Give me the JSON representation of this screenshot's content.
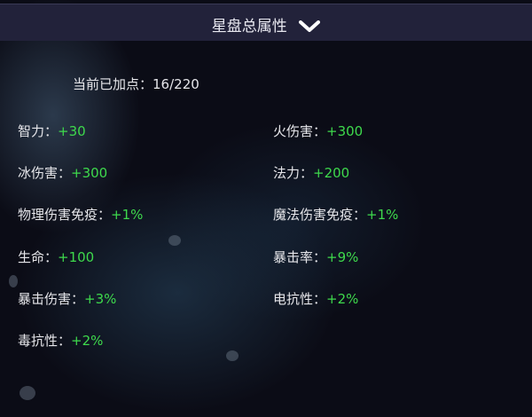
{
  "header": {
    "title": "星盘总属性",
    "toggle_icon": "chevron-down-icon"
  },
  "summary": {
    "label": "当前已加点：",
    "value": "16/220"
  },
  "colors": {
    "value_green": "#3ed94c",
    "header_bg": "#22223a"
  },
  "attributes": [
    {
      "label": "智力：",
      "value": "+30"
    },
    {
      "label": "火伤害：",
      "value": "+300"
    },
    {
      "label": "冰伤害：",
      "value": "+300"
    },
    {
      "label": "法力：",
      "value": "+200"
    },
    {
      "label": "物理伤害免疫：",
      "value": "+1%"
    },
    {
      "label": "魔法伤害免疫：",
      "value": "+1%"
    },
    {
      "label": "生命：",
      "value": "+100"
    },
    {
      "label": "暴击率：",
      "value": "+9%"
    },
    {
      "label": "暴击伤害：",
      "value": "+3%"
    },
    {
      "label": "电抗性：",
      "value": "+2%"
    },
    {
      "label": "毒抗性：",
      "value": "+2%"
    }
  ]
}
